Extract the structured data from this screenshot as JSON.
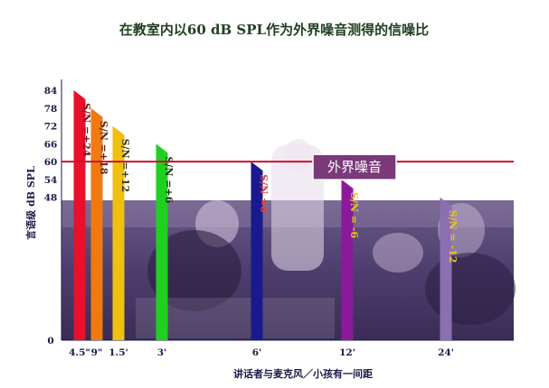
{
  "colors": {
    "photo_bg": "#5a4a78",
    "noise_line": "#cc1030",
    "noise_box": "#7a3a7a",
    "noise_box_border": "#ffffff"
  },
  "chart_data": {
    "type": "bar",
    "title": "在教室内以60 dB SPL作为外界噪音测得的信噪比",
    "xlabel": "讲话者与麦克风／小孩有一间距",
    "ylabel": "言语级 dB SPL",
    "y_ticks": [
      0,
      48,
      54,
      60,
      66,
      72,
      78,
      84
    ],
    "ylim": [
      0,
      84
    ],
    "categories": [
      "4.5\"",
      "9\"",
      "1.5'",
      "3'",
      "6'",
      "12'",
      "24'"
    ],
    "values": [
      84,
      78,
      72,
      66,
      60,
      54,
      48
    ],
    "bar_labels": [
      "S/N =+24",
      "S/N =+18",
      "S/N =+12",
      "S/N =+6",
      "S/N =0",
      "S/N = -6",
      "S/N = -12"
    ],
    "bar_colors": [
      "#e8102a",
      "#f07a10",
      "#f0c010",
      "#20d020",
      "#1a1a90",
      "#8a1a9a",
      "#8a70b0"
    ],
    "bar_label_colors": [
      "#7a1010",
      "#5a2a10",
      "#3a3a10",
      "#103a10",
      "#e04040",
      "#f0c020",
      "#f0c020"
    ],
    "reference_line": {
      "value": 60,
      "label": "外界噪音"
    },
    "grid": false,
    "legend": "none"
  }
}
